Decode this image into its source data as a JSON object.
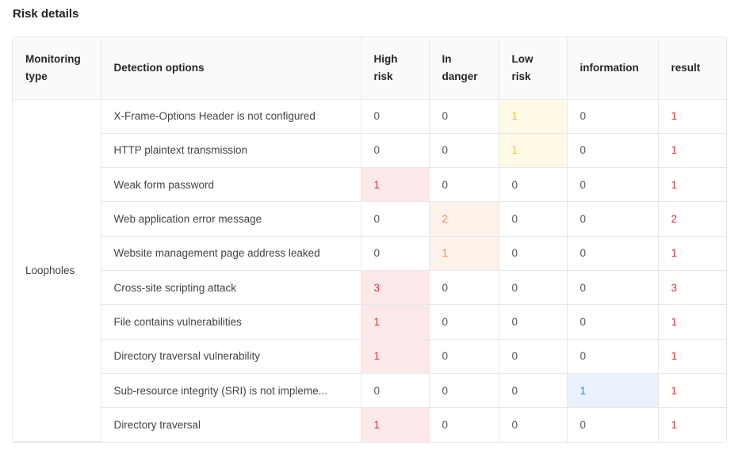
{
  "title": "Risk details",
  "table": {
    "headers": {
      "monitoring_type": "Monitoring type",
      "detection_options": "Detection options",
      "high_risk": "High risk",
      "in_danger": "In danger",
      "low_risk": "Low risk",
      "information": "information",
      "result": "result"
    },
    "group_label": "Loopholes",
    "rows": [
      {
        "option": "X-Frame-Options Header is not configured",
        "high": "0",
        "danger": "0",
        "low": "1",
        "info": "0",
        "result": "1"
      },
      {
        "option": "HTTP plaintext transmission",
        "high": "0",
        "danger": "0",
        "low": "1",
        "info": "0",
        "result": "1"
      },
      {
        "option": "Weak form password",
        "high": "1",
        "danger": "0",
        "low": "0",
        "info": "0",
        "result": "1"
      },
      {
        "option": "Web application error message",
        "high": "0",
        "danger": "2",
        "low": "0",
        "info": "0",
        "result": "2"
      },
      {
        "option": "Website management page address leaked",
        "high": "0",
        "danger": "1",
        "low": "0",
        "info": "0",
        "result": "1"
      },
      {
        "option": "Cross-site scripting attack",
        "high": "3",
        "danger": "0",
        "low": "0",
        "info": "0",
        "result": "3"
      },
      {
        "option": "File contains vulnerabilities",
        "high": "1",
        "danger": "0",
        "low": "0",
        "info": "0",
        "result": "1"
      },
      {
        "option": "Directory traversal vulnerability",
        "high": "1",
        "danger": "0",
        "low": "0",
        "info": "0",
        "result": "1"
      },
      {
        "option": "Sub-resource integrity (SRI) is not impleme...",
        "high": "0",
        "danger": "0",
        "low": "0",
        "info": "1",
        "result": "1"
      },
      {
        "option": "Directory traversal",
        "high": "1",
        "danger": "0",
        "low": "0",
        "info": "0",
        "result": "1"
      }
    ]
  },
  "colors": {
    "high_risk": "#e0303a",
    "in_danger": "#ee8a4f",
    "low_risk": "#f3c13c",
    "information": "#3d7ddb",
    "result": "#e0303a"
  }
}
